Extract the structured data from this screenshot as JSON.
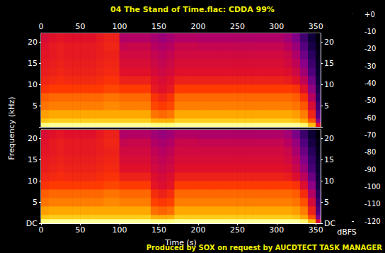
{
  "chart_data": {
    "type": "spectrogram",
    "title": "04 The Stand of Time.flac: CDDA 99%",
    "x_label": "Time (s)",
    "y_label": "Frequency (kHz)",
    "footer": "Produced by SOX on request by AUCDTECT TASK MANAGER",
    "xlim": [
      0,
      356
    ],
    "xticks": [
      0,
      50,
      100,
      150,
      200,
      250,
      300,
      350
    ],
    "ylim": [
      0,
      22.05
    ],
    "yticks": [
      {
        "value": 0,
        "label": "DC"
      },
      5,
      10,
      15,
      20
    ],
    "time_edges": [
      0,
      10,
      20,
      30,
      40,
      50,
      60,
      70,
      80,
      90,
      100,
      110,
      120,
      130,
      140,
      150,
      160,
      170,
      180,
      190,
      200,
      210,
      220,
      230,
      240,
      250,
      260,
      270,
      280,
      290,
      300,
      310,
      320,
      330,
      340,
      350,
      356
    ],
    "frequency_edges": [
      0,
      1,
      2,
      4,
      6,
      8,
      10,
      12,
      14,
      16,
      18,
      20,
      22.05
    ],
    "channels": [
      {
        "cells": [
          [
            -10,
            -8,
            -8,
            -8,
            -8,
            -8,
            -8,
            -8,
            -8,
            -8,
            -8,
            -8,
            -8,
            -8,
            -10,
            -10,
            -10,
            -8,
            -8,
            -8,
            -8,
            -8,
            -8,
            -8,
            -8,
            -8,
            -8,
            -8,
            -8,
            -8,
            -8,
            -8,
            -8,
            -12,
            -25,
            -60
          ],
          [
            -24,
            -22,
            -22,
            -22,
            -22,
            -22,
            -22,
            -22,
            -22,
            -22,
            -22,
            -22,
            -22,
            -22,
            -28,
            -28,
            -28,
            -22,
            -22,
            -22,
            -22,
            -22,
            -22,
            -22,
            -22,
            -22,
            -22,
            -22,
            -22,
            -22,
            -22,
            -22,
            -24,
            -30,
            -45,
            -80
          ],
          [
            -32,
            -30,
            -30,
            -30,
            -30,
            -30,
            -30,
            -30,
            -30,
            -30,
            -30,
            -30,
            -30,
            -30,
            -40,
            -42,
            -40,
            -30,
            -30,
            -30,
            -30,
            -30,
            -30,
            -30,
            -30,
            -30,
            -30,
            -30,
            -30,
            -30,
            -30,
            -30,
            -32,
            -38,
            -55,
            -90
          ],
          [
            -40,
            -38,
            -38,
            -38,
            -38,
            -38,
            -38,
            -38,
            -36,
            -36,
            -38,
            -38,
            -38,
            -38,
            -48,
            -50,
            -48,
            -38,
            -38,
            -38,
            -38,
            -38,
            -38,
            -38,
            -38,
            -38,
            -38,
            -38,
            -38,
            -38,
            -38,
            -38,
            -40,
            -45,
            -62,
            -95
          ],
          [
            -44,
            -42,
            -42,
            -42,
            -42,
            -42,
            -42,
            -42,
            -40,
            -40,
            -42,
            -42,
            -42,
            -42,
            -52,
            -55,
            -52,
            -42,
            -42,
            -42,
            -42,
            -42,
            -42,
            -42,
            -42,
            -42,
            -42,
            -42,
            -42,
            -42,
            -42,
            -42,
            -44,
            -52,
            -70,
            -100
          ],
          [
            -52,
            -50,
            -50,
            -50,
            -50,
            -50,
            -50,
            -50,
            -48,
            -48,
            -50,
            -50,
            -50,
            -50,
            -58,
            -60,
            -58,
            -50,
            -50,
            -50,
            -50,
            -50,
            -50,
            -50,
            -50,
            -50,
            -50,
            -50,
            -50,
            -50,
            -50,
            -50,
            -52,
            -60,
            -78,
            -105
          ],
          [
            -55,
            -54,
            -53,
            -54,
            -54,
            -54,
            -54,
            -53,
            -52,
            -52,
            -56,
            -56,
            -56,
            -56,
            -60,
            -62,
            -60,
            -56,
            -56,
            -56,
            -56,
            -56,
            -56,
            -56,
            -56,
            -56,
            -56,
            -56,
            -56,
            -56,
            -56,
            -57,
            -60,
            -68,
            -85,
            -108
          ],
          [
            -57,
            -56,
            -55,
            -56,
            -56,
            -56,
            -56,
            -55,
            -54,
            -54,
            -60,
            -60,
            -60,
            -60,
            -63,
            -65,
            -63,
            -60,
            -60,
            -60,
            -60,
            -60,
            -60,
            -60,
            -60,
            -60,
            -60,
            -60,
            -60,
            -60,
            -60,
            -61,
            -65,
            -75,
            -92,
            -110
          ],
          [
            -58,
            -57,
            -56,
            -57,
            -57,
            -57,
            -57,
            -56,
            -55,
            -55,
            -62,
            -62,
            -62,
            -62,
            -65,
            -67,
            -65,
            -62,
            -62,
            -62,
            -62,
            -62,
            -62,
            -62,
            -62,
            -62,
            -62,
            -62,
            -62,
            -62,
            -62,
            -64,
            -68,
            -80,
            -96,
            -112
          ],
          [
            -59,
            -58,
            -57,
            -58,
            -58,
            -58,
            -58,
            -57,
            -56,
            -56,
            -64,
            -64,
            -64,
            -64,
            -67,
            -69,
            -67,
            -64,
            -64,
            -64,
            -64,
            -64,
            -64,
            -64,
            -64,
            -64,
            -64,
            -64,
            -64,
            -64,
            -64,
            -66,
            -72,
            -85,
            -100,
            -114
          ],
          [
            -60,
            -58,
            -57,
            -58,
            -58,
            -58,
            -58,
            -57,
            -55,
            -55,
            -67,
            -66,
            -66,
            -66,
            -70,
            -72,
            -70,
            -66,
            -66,
            -66,
            -67,
            -67,
            -67,
            -67,
            -67,
            -67,
            -67,
            -67,
            -67,
            -67,
            -67,
            -70,
            -76,
            -90,
            -105,
            -116
          ],
          [
            -62,
            -60,
            -59,
            -60,
            -60,
            -60,
            -60,
            -58,
            -56,
            -56,
            -72,
            -71,
            -71,
            -71,
            -74,
            -76,
            -74,
            -71,
            -71,
            -71,
            -72,
            -72,
            -72,
            -72,
            -72,
            -72,
            -72,
            -72,
            -72,
            -72,
            -72,
            -75,
            -82,
            -95,
            -108,
            -118
          ]
        ]
      },
      {
        "cells": [
          [
            -10,
            -8,
            -8,
            -8,
            -8,
            -8,
            -8,
            -8,
            -8,
            -8,
            -8,
            -8,
            -8,
            -8,
            -10,
            -10,
            -10,
            -8,
            -8,
            -8,
            -8,
            -8,
            -8,
            -8,
            -8,
            -8,
            -8,
            -8,
            -8,
            -8,
            -8,
            -8,
            -8,
            -12,
            -26,
            -62
          ],
          [
            -24,
            -22,
            -22,
            -22,
            -22,
            -22,
            -22,
            -22,
            -22,
            -22,
            -22,
            -22,
            -22,
            -22,
            -28,
            -29,
            -28,
            -22,
            -22,
            -22,
            -22,
            -22,
            -22,
            -22,
            -22,
            -22,
            -22,
            -22,
            -22,
            -22,
            -22,
            -22,
            -24,
            -30,
            -46,
            -82
          ],
          [
            -32,
            -30,
            -30,
            -30,
            -30,
            -30,
            -30,
            -30,
            -30,
            -30,
            -30,
            -30,
            -30,
            -30,
            -41,
            -43,
            -41,
            -30,
            -30,
            -30,
            -30,
            -30,
            -30,
            -30,
            -30,
            -30,
            -30,
            -30,
            -30,
            -30,
            -30,
            -30,
            -32,
            -38,
            -56,
            -92
          ],
          [
            -40,
            -38,
            -38,
            -38,
            -38,
            -38,
            -38,
            -38,
            -36,
            -36,
            -38,
            -38,
            -38,
            -38,
            -49,
            -51,
            -49,
            -38,
            -38,
            -38,
            -38,
            -38,
            -38,
            -38,
            -38,
            -38,
            -38,
            -38,
            -38,
            -38,
            -38,
            -38,
            -40,
            -46,
            -63,
            -96
          ],
          [
            -44,
            -42,
            -42,
            -42,
            -42,
            -42,
            -42,
            -42,
            -40,
            -40,
            -42,
            -42,
            -42,
            -42,
            -53,
            -56,
            -53,
            -42,
            -42,
            -42,
            -42,
            -42,
            -42,
            -42,
            -42,
            -42,
            -42,
            -42,
            -42,
            -42,
            -42,
            -42,
            -44,
            -53,
            -71,
            -101
          ],
          [
            -52,
            -50,
            -50,
            -50,
            -50,
            -50,
            -50,
            -50,
            -48,
            -48,
            -50,
            -50,
            -50,
            -50,
            -59,
            -61,
            -59,
            -50,
            -50,
            -50,
            -50,
            -50,
            -50,
            -50,
            -50,
            -50,
            -50,
            -50,
            -50,
            -50,
            -50,
            -50,
            -52,
            -61,
            -79,
            -106
          ],
          [
            -55,
            -54,
            -53,
            -54,
            -54,
            -54,
            -54,
            -53,
            -52,
            -52,
            -56,
            -56,
            -56,
            -56,
            -61,
            -63,
            -61,
            -56,
            -56,
            -56,
            -56,
            -56,
            -56,
            -56,
            -56,
            -56,
            -56,
            -56,
            -56,
            -56,
            -56,
            -57,
            -61,
            -69,
            -86,
            -108
          ],
          [
            -57,
            -56,
            -55,
            -56,
            -56,
            -56,
            -56,
            -55,
            -54,
            -54,
            -60,
            -60,
            -60,
            -60,
            -64,
            -66,
            -64,
            -60,
            -60,
            -60,
            -60,
            -60,
            -60,
            -60,
            -60,
            -60,
            -60,
            -60,
            -60,
            -60,
            -60,
            -61,
            -66,
            -76,
            -93,
            -110
          ],
          [
            -58,
            -57,
            -56,
            -57,
            -57,
            -57,
            -57,
            -56,
            -55,
            -55,
            -62,
            -62,
            -62,
            -62,
            -66,
            -68,
            -66,
            -62,
            -62,
            -62,
            -62,
            -62,
            -62,
            -62,
            -62,
            -62,
            -62,
            -62,
            -62,
            -62,
            -62,
            -64,
            -69,
            -81,
            -97,
            -112
          ],
          [
            -59,
            -58,
            -57,
            -58,
            -58,
            -58,
            -58,
            -57,
            -56,
            -56,
            -64,
            -64,
            -64,
            -64,
            -68,
            -70,
            -68,
            -64,
            -64,
            -64,
            -64,
            -64,
            -64,
            -64,
            -64,
            -64,
            -64,
            -64,
            -64,
            -64,
            -64,
            -66,
            -73,
            -86,
            -101,
            -114
          ],
          [
            -60,
            -58,
            -57,
            -58,
            -58,
            -58,
            -58,
            -57,
            -55,
            -55,
            -67,
            -66,
            -66,
            -66,
            -71,
            -73,
            -71,
            -66,
            -66,
            -66,
            -67,
            -67,
            -67,
            -67,
            -67,
            -67,
            -67,
            -67,
            -67,
            -67,
            -67,
            -70,
            -77,
            -91,
            -106,
            -116
          ],
          [
            -62,
            -60,
            -59,
            -60,
            -60,
            -60,
            -60,
            -58,
            -56,
            -56,
            -72,
            -71,
            -71,
            -71,
            -75,
            -77,
            -75,
            -71,
            -71,
            -71,
            -72,
            -72,
            -72,
            -72,
            -72,
            -72,
            -72,
            -72,
            -72,
            -72,
            -72,
            -75,
            -83,
            -96,
            -109,
            -118
          ]
        ]
      }
    ],
    "colorbar": {
      "label": "dBFS",
      "range": [
        -120,
        0
      ],
      "ticks": [
        {
          "value": 0,
          "label": "+0"
        },
        -10,
        -20,
        -30,
        -40,
        -50,
        -60,
        -70,
        -80,
        -90,
        -100,
        -110,
        -120
      ]
    }
  }
}
